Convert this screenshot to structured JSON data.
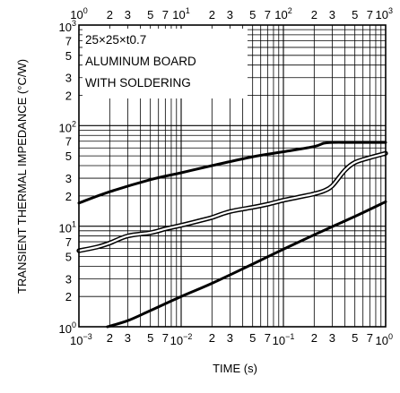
{
  "chart_data": {
    "type": "line",
    "title": "",
    "xlabel": "TIME (s)",
    "ylabel": "TRANSIENT THERMAL IMPEDANCE (°C/W)",
    "x_scale": "log",
    "y_scale": "log",
    "xlim": [
      0.001,
      1
    ],
    "ylim": [
      1,
      1000
    ],
    "top_xlim": [
      1,
      1000
    ],
    "grid": true,
    "legend": "none",
    "annotations": [
      "25×25×t0.7",
      "ALUMINUM BOARD",
      "WITH SOLDERING"
    ],
    "tick_minor_labels": [
      "2",
      "3",
      "5",
      "7"
    ],
    "bottom_decades": [
      {
        "base": "10",
        "exp": "−3"
      },
      {
        "base": "10",
        "exp": "−2"
      },
      {
        "base": "10",
        "exp": "−1"
      },
      {
        "base": "10",
        "exp": "0"
      }
    ],
    "top_decades": [
      {
        "base": "10",
        "exp": "0"
      },
      {
        "base": "10",
        "exp": "1"
      },
      {
        "base": "10",
        "exp": "2"
      },
      {
        "base": "10",
        "exp": "3"
      }
    ],
    "left_decades": [
      {
        "base": "10",
        "exp": "0"
      },
      {
        "base": "10",
        "exp": "1"
      },
      {
        "base": "10",
        "exp": "2"
      },
      {
        "base": "10",
        "exp": "3"
      }
    ],
    "series": [
      {
        "style": "solid",
        "x": [
          0.001,
          0.002,
          0.005,
          0.01,
          0.02,
          0.05,
          0.1,
          0.2,
          0.25,
          0.3,
          0.5,
          1.0
        ],
        "y": [
          17,
          22,
          29,
          34,
          40,
          49,
          55,
          62,
          67,
          68,
          68,
          68
        ]
      },
      {
        "style": "solid",
        "x": [
          0.0019,
          0.003,
          0.005,
          0.01,
          0.02,
          0.05,
          0.1,
          0.2,
          0.5,
          1.0
        ],
        "y": [
          1.0,
          1.15,
          1.45,
          2.0,
          2.7,
          4.2,
          5.9,
          8.2,
          12.5,
          17.5
        ]
      },
      {
        "style": "double",
        "x": [
          0.001,
          0.0015,
          0.002,
          0.003,
          0.005,
          0.007,
          0.01,
          0.015,
          0.02,
          0.03,
          0.05,
          0.07,
          0.1,
          0.15,
          0.2,
          0.25,
          0.3,
          0.4,
          0.5,
          0.7,
          1.0
        ],
        "y": [
          5.7,
          6.2,
          6.8,
          8.0,
          8.6,
          9.4,
          10.2,
          11.3,
          12.2,
          14.0,
          15.4,
          16.5,
          18.1,
          19.7,
          21.0,
          22.5,
          25.2,
          36.0,
          43.0,
          48.0,
          53.0
        ]
      }
    ]
  }
}
